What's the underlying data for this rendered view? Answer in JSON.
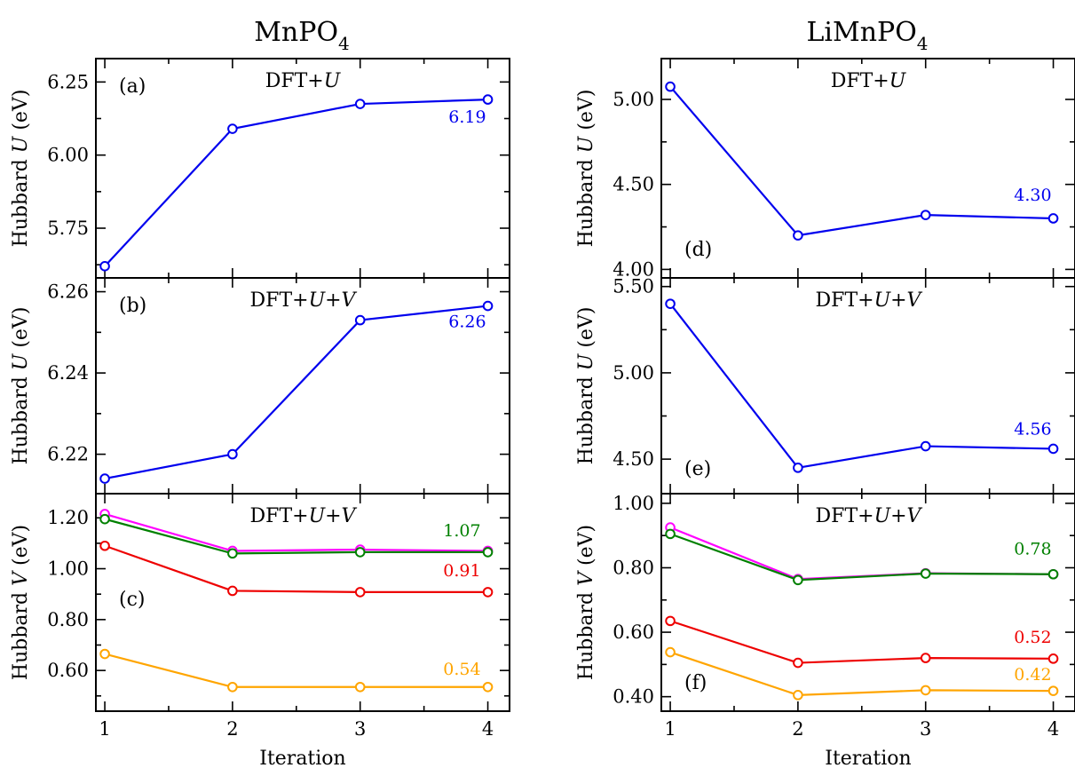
{
  "column_titles": [
    {
      "main": "MnPO",
      "sub": "4"
    },
    {
      "main": "LiMnPO",
      "sub": "4"
    }
  ],
  "colors": {
    "blue": "#0000ee",
    "magenta": "#ff00ff",
    "green": "#008000",
    "red": "#ee0000",
    "orange": "#ffa500"
  },
  "chart_data": [
    {
      "id": "a",
      "type": "line",
      "panel_label": "(a)",
      "method": {
        "pre": "DFT+",
        "it1": "U",
        "mid": "",
        "it2": ""
      },
      "ylabel": {
        "pre": "Hubbard ",
        "it": "U",
        "post": " (eV)"
      },
      "ylim": [
        5.58,
        6.33
      ],
      "yticks": [
        5.75,
        6.0,
        6.25
      ],
      "ytick_labels": [
        "5.75",
        "6.00",
        "6.25"
      ],
      "x": [
        1,
        2,
        3,
        4
      ],
      "xlabel": "",
      "series": [
        {
          "color": "blue",
          "values": [
            5.62,
            6.09,
            6.175,
            6.19
          ],
          "label": "6.19"
        }
      ]
    },
    {
      "id": "b",
      "type": "line",
      "panel_label": "(b)",
      "method": {
        "pre": "DFT+",
        "it1": "U",
        "mid": "+",
        "it2": "V"
      },
      "ylabel": {
        "pre": "Hubbard ",
        "it": "U",
        "post": " (eV)"
      },
      "ylim": [
        6.2103,
        6.2634
      ],
      "yticks": [
        6.22,
        6.24,
        6.26
      ],
      "ytick_labels": [
        "6.22",
        "6.24",
        "6.26"
      ],
      "x": [
        1,
        2,
        3,
        4
      ],
      "xlabel": "",
      "series": [
        {
          "color": "blue",
          "values": [
            6.214,
            6.22,
            6.253,
            6.2565
          ],
          "label": "6.26"
        }
      ]
    },
    {
      "id": "c",
      "type": "line",
      "panel_label": "(c)",
      "method": {
        "pre": "DFT+",
        "it1": "U",
        "mid": "+",
        "it2": "V"
      },
      "ylabel": {
        "pre": "Hubbard ",
        "it": "V",
        "post": " (eV)"
      },
      "ylim": [
        0.44,
        1.295
      ],
      "yticks": [
        0.6,
        0.8,
        1.0,
        1.2
      ],
      "ytick_labels": [
        "0.60",
        "0.80",
        "1.00",
        "1.20"
      ],
      "x": [
        1,
        2,
        3,
        4
      ],
      "xlabel": "Iteration",
      "series": [
        {
          "color": "magenta",
          "values": [
            1.215,
            1.07,
            1.075,
            1.07
          ],
          "label": ""
        },
        {
          "color": "green",
          "values": [
            1.195,
            1.06,
            1.065,
            1.065
          ],
          "label": "1.07"
        },
        {
          "color": "red",
          "values": [
            1.09,
            0.913,
            0.908,
            0.908
          ],
          "label": "0.91"
        },
        {
          "color": "orange",
          "values": [
            0.665,
            0.535,
            0.535,
            0.535
          ],
          "label": "0.54"
        }
      ]
    },
    {
      "id": "d",
      "type": "line",
      "panel_label": "(d)",
      "method": {
        "pre": "DFT+",
        "it1": "U",
        "mid": "",
        "it2": ""
      },
      "ylabel": {
        "pre": "Hubbard ",
        "it": "U",
        "post": " (eV)"
      },
      "ylim": [
        3.95,
        5.24
      ],
      "yticks": [
        4.0,
        4.5,
        5.0
      ],
      "ytick_labels": [
        "4.00",
        "4.50",
        "5.00"
      ],
      "x": [
        1,
        2,
        3,
        4
      ],
      "xlabel": "",
      "series": [
        {
          "color": "blue",
          "values": [
            5.075,
            4.2,
            4.32,
            4.3
          ],
          "label": "4.30"
        }
      ]
    },
    {
      "id": "e",
      "type": "line",
      "panel_label": "(e)",
      "method": {
        "pre": "DFT+",
        "it1": "U",
        "mid": "+",
        "it2": "V"
      },
      "ylabel": {
        "pre": "Hubbard ",
        "it": "U",
        "post": " (eV)"
      },
      "ylim": [
        4.3,
        5.55
      ],
      "yticks": [
        4.5,
        5.0,
        5.5
      ],
      "ytick_labels": [
        "4.50",
        "5.00",
        "5.50"
      ],
      "x": [
        1,
        2,
        3,
        4
      ],
      "xlabel": "",
      "series": [
        {
          "color": "blue",
          "values": [
            5.4,
            4.45,
            4.575,
            4.56
          ],
          "label": "4.56"
        }
      ]
    },
    {
      "id": "f",
      "type": "line",
      "panel_label": "(f)",
      "method": {
        "pre": "DFT+",
        "it1": "U",
        "mid": "+",
        "it2": "V"
      },
      "ylabel": {
        "pre": "Hubbard ",
        "it": "V",
        "post": " (eV)"
      },
      "ylim": [
        0.355,
        1.03
      ],
      "yticks": [
        0.4,
        0.6,
        0.8,
        1.0
      ],
      "ytick_labels": [
        "0.40",
        "0.60",
        "0.80",
        "1.00"
      ],
      "x": [
        1,
        2,
        3,
        4
      ],
      "xlabel": "Iteration",
      "series": [
        {
          "color": "magenta",
          "values": [
            0.925,
            0.765,
            0.783,
            0.78
          ],
          "label": ""
        },
        {
          "color": "green",
          "values": [
            0.905,
            0.762,
            0.782,
            0.78
          ],
          "label": "0.78"
        },
        {
          "color": "red",
          "values": [
            0.635,
            0.505,
            0.52,
            0.518
          ],
          "label": "0.52"
        },
        {
          "color": "orange",
          "values": [
            0.538,
            0.405,
            0.42,
            0.418
          ],
          "label": "0.42"
        }
      ]
    }
  ]
}
